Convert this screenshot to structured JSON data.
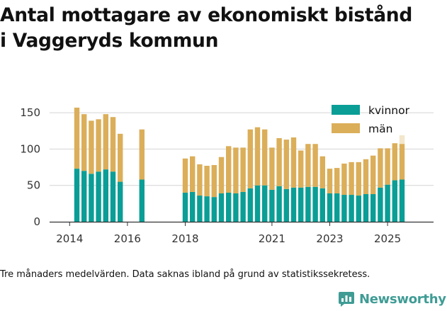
{
  "title_line1": "Antal mottagare av ekonomiskt bistånd",
  "title_line2": "i Vaggeryds kommun",
  "note": "Tre månaders medelvärden. Data saknas ibland på grund av statistikssekretess.",
  "brand": {
    "name": "Newsworthy",
    "color": "#3f9c95",
    "icon": "bar-chart-logo-icon"
  },
  "chart_data": {
    "type": "bar",
    "stacked": true,
    "x_axis_type": "quarterly",
    "x_ticks": [
      "2014",
      "2016",
      "2018",
      "2021",
      "2023",
      "2025"
    ],
    "y_ticks": [
      0,
      50,
      100,
      150
    ],
    "ylim": [
      0,
      160
    ],
    "grid": "horizontal",
    "legend_position": "top-right",
    "colors": {
      "kvinnor": "#0a9e96",
      "man": "#dbae59",
      "preliminary": "#f3e6cb"
    },
    "categories": [
      "2014 Q2",
      "2014 Q3",
      "2014 Q4",
      "2015 Q1",
      "2015 Q2",
      "2015 Q3",
      "2015 Q4",
      "2016 Q1",
      "2016 Q2",
      "2016 Q3",
      "2016 Q4",
      "2017 Q1",
      "2017 Q2",
      "2017 Q3",
      "2017 Q4",
      "2018 Q1",
      "2018 Q2",
      "2018 Q3",
      "2018 Q4",
      "2019 Q1",
      "2019 Q2",
      "2019 Q3",
      "2019 Q4",
      "2020 Q1",
      "2020 Q2",
      "2020 Q3",
      "2020 Q4",
      "2021 Q1",
      "2021 Q2",
      "2021 Q3",
      "2021 Q4",
      "2022 Q1",
      "2022 Q2",
      "2022 Q3",
      "2022 Q4",
      "2023 Q1",
      "2023 Q2",
      "2023 Q3",
      "2023 Q4",
      "2024 Q1",
      "2024 Q2",
      "2024 Q3",
      "2024 Q4",
      "2025 Q1",
      "2025 Q2",
      "2025 Q3"
    ],
    "series": [
      {
        "name": "kvinnor",
        "values": [
          73,
          70,
          66,
          69,
          72,
          69,
          55,
          null,
          null,
          58,
          null,
          null,
          null,
          null,
          null,
          40,
          41,
          36,
          35,
          34,
          39,
          40,
          39,
          41,
          46,
          50,
          50,
          44,
          49,
          45,
          47,
          47,
          48,
          48,
          46,
          39,
          39,
          37,
          37,
          36,
          38,
          38,
          47,
          51,
          57,
          58
        ]
      },
      {
        "name": "män",
        "values": [
          84,
          78,
          73,
          72,
          76,
          75,
          66,
          null,
          null,
          69,
          null,
          null,
          null,
          null,
          null,
          47,
          49,
          43,
          42,
          44,
          50,
          64,
          63,
          61,
          81,
          80,
          77,
          58,
          66,
          68,
          69,
          51,
          59,
          59,
          44,
          34,
          35,
          43,
          45,
          46,
          48,
          53,
          54,
          50,
          51,
          49
        ]
      }
    ],
    "preliminary_top": {
      "category": "2025 Q3",
      "value": 119
    }
  }
}
